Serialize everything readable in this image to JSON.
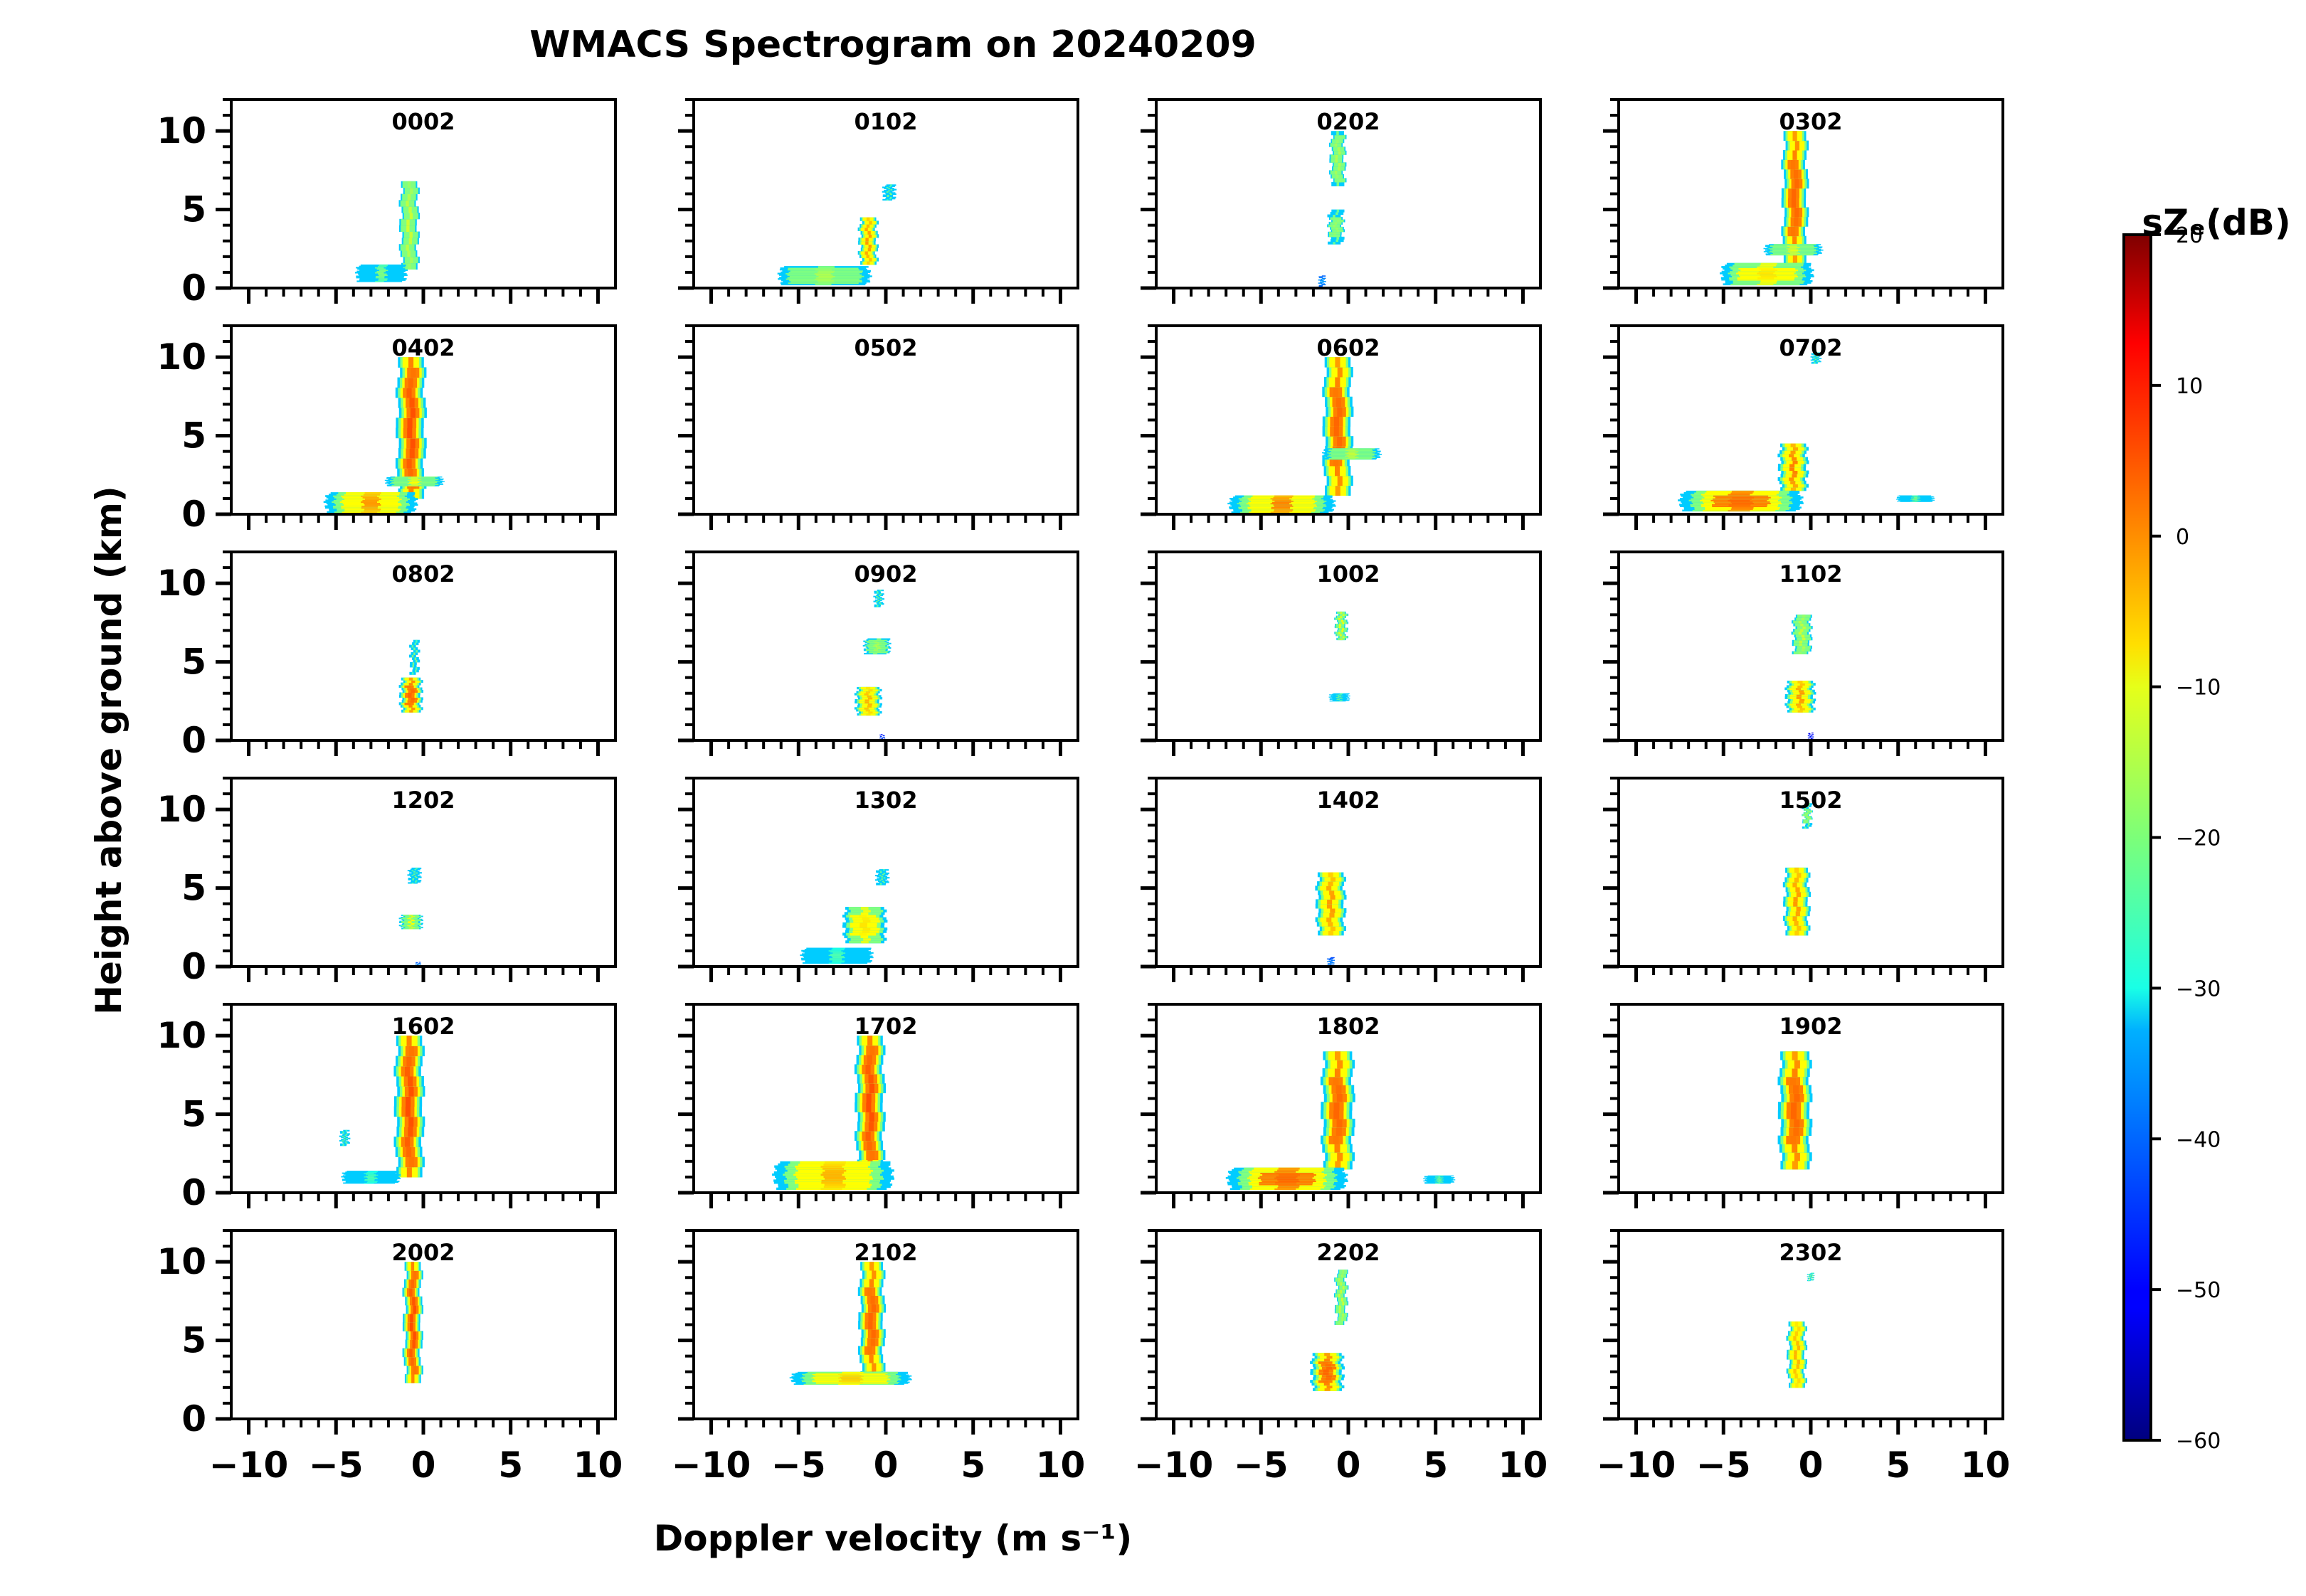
{
  "chart_data": {
    "type": "heatmap",
    "title": "WMACS Spectrogram on 20240209",
    "xlabel": "Doppler velocity (m s⁻¹)",
    "ylabel": "Height above ground (km)",
    "xlim": [
      -11,
      11
    ],
    "ylim": [
      0,
      12
    ],
    "x_ticks": [
      -10,
      -5,
      0,
      5,
      10
    ],
    "x_tick_labels": [
      "−10",
      "−5",
      "0",
      "5",
      "10"
    ],
    "y_ticks": [
      0,
      5,
      10
    ],
    "y_tick_labels": [
      "0",
      "5",
      "10"
    ],
    "colorbar": {
      "label": "sZₑ(dB)",
      "min": -60,
      "max": 20,
      "ticks": [
        -60,
        -50,
        -40,
        -30,
        -20,
        -10,
        0,
        10,
        20
      ],
      "tick_labels": [
        "−60",
        "−50",
        "−40",
        "−30",
        "−20",
        "−10",
        "0",
        "10",
        "20"
      ],
      "colormap": "jet"
    },
    "panels": [
      {
        "label": "0002",
        "features": [
          {
            "v": -0.8,
            "h0": 1.2,
            "h1": 6.8,
            "w": 0.5,
            "peak": -14
          },
          {
            "v": -2.4,
            "h0": 0.4,
            "h1": 1.5,
            "w": 1.4,
            "peak": -20
          }
        ]
      },
      {
        "label": "0102",
        "features": [
          {
            "v": -1.0,
            "h0": 1.5,
            "h1": 4.5,
            "w": 0.5,
            "peak": -2
          },
          {
            "v": 0.2,
            "h0": 5.6,
            "h1": 6.6,
            "w": 0.3,
            "peak": -20
          },
          {
            "v": -3.5,
            "h0": 0.2,
            "h1": 1.4,
            "w": 2.6,
            "peak": -16
          }
        ]
      },
      {
        "label": "0202",
        "features": [
          {
            "v": -0.6,
            "h0": 6.5,
            "h1": 10.0,
            "w": 0.4,
            "peak": -16
          },
          {
            "v": -0.7,
            "h0": 2.8,
            "h1": 5.0,
            "w": 0.4,
            "peak": -18
          },
          {
            "v": -1.5,
            "h0": 0.1,
            "h1": 0.8,
            "w": 0.6,
            "peak": -38
          }
        ]
      },
      {
        "label": "0302",
        "features": [
          {
            "v": -0.9,
            "h0": 1.5,
            "h1": 10.0,
            "w": 0.7,
            "peak": 2
          },
          {
            "v": -2.5,
            "h0": 0.2,
            "h1": 1.6,
            "w": 2.6,
            "peak": -8
          },
          {
            "v": -1.0,
            "h0": 2.1,
            "h1": 2.8,
            "w": 1.6,
            "peak": -12
          }
        ]
      },
      {
        "label": "0402",
        "features": [
          {
            "v": -0.7,
            "h0": 1.0,
            "h1": 10.0,
            "w": 0.8,
            "peak": 4
          },
          {
            "v": -3.0,
            "h0": 0.1,
            "h1": 1.4,
            "w": 2.6,
            "peak": -2
          },
          {
            "v": -0.5,
            "h0": 1.8,
            "h1": 2.4,
            "w": 1.6,
            "peak": -10
          }
        ]
      },
      {
        "label": "0502",
        "features": []
      },
      {
        "label": "0602",
        "features": [
          {
            "v": -0.6,
            "h0": 1.2,
            "h1": 10.0,
            "w": 0.8,
            "peak": 2
          },
          {
            "v": -3.8,
            "h0": 0.1,
            "h1": 1.2,
            "w": 3.0,
            "peak": 0
          },
          {
            "v": 0.2,
            "h0": 3.5,
            "h1": 4.2,
            "w": 1.6,
            "peak": -14
          }
        ]
      },
      {
        "label": "0702",
        "features": [
          {
            "v": -1.0,
            "h0": 1.5,
            "h1": 4.5,
            "w": 0.8,
            "peak": 0
          },
          {
            "v": -4.0,
            "h0": 0.2,
            "h1": 1.5,
            "w": 3.5,
            "peak": 2
          },
          {
            "v": 0.3,
            "h0": 9.6,
            "h1": 10.3,
            "w": 0.2,
            "peak": -20
          },
          {
            "v": 6.0,
            "h0": 0.8,
            "h1": 1.2,
            "w": 1.0,
            "peak": -20
          }
        ]
      },
      {
        "label": "0802",
        "features": [
          {
            "v": -0.7,
            "h0": 1.8,
            "h1": 4.0,
            "w": 0.6,
            "peak": 2
          },
          {
            "v": -0.5,
            "h0": 4.2,
            "h1": 6.4,
            "w": 0.2,
            "peak": -20
          }
        ]
      },
      {
        "label": "0902",
        "features": [
          {
            "v": -1.0,
            "h0": 1.6,
            "h1": 3.4,
            "w": 0.7,
            "peak": -4
          },
          {
            "v": -0.5,
            "h0": 5.5,
            "h1": 6.5,
            "w": 0.7,
            "peak": -16
          },
          {
            "v": -0.4,
            "h0": 8.5,
            "h1": 9.6,
            "w": 0.2,
            "peak": -20
          },
          {
            "v": -0.2,
            "h0": 0.0,
            "h1": 0.4,
            "w": 0.2,
            "peak": -45
          }
        ]
      },
      {
        "label": "1002",
        "features": [
          {
            "v": -0.4,
            "h0": 6.4,
            "h1": 8.2,
            "w": 0.3,
            "peak": -10
          },
          {
            "v": -0.5,
            "h0": 2.5,
            "h1": 3.0,
            "w": 0.5,
            "peak": -20
          }
        ]
      },
      {
        "label": "1102",
        "features": [
          {
            "v": -0.6,
            "h0": 1.8,
            "h1": 3.8,
            "w": 0.8,
            "peak": -2
          },
          {
            "v": -0.5,
            "h0": 5.5,
            "h1": 8.0,
            "w": 0.5,
            "peak": -14
          },
          {
            "v": 0.0,
            "h0": 0.0,
            "h1": 0.5,
            "w": 0.3,
            "peak": -48
          }
        ]
      },
      {
        "label": "1202",
        "features": [
          {
            "v": -0.7,
            "h0": 2.4,
            "h1": 3.3,
            "w": 0.6,
            "peak": -10
          },
          {
            "v": -0.5,
            "h0": 5.3,
            "h1": 6.3,
            "w": 0.3,
            "peak": -20
          },
          {
            "v": -0.3,
            "h0": 0.0,
            "h1": 0.3,
            "w": 0.3,
            "peak": -40
          }
        ]
      },
      {
        "label": "1302",
        "features": [
          {
            "v": -1.2,
            "h0": 1.5,
            "h1": 3.8,
            "w": 1.2,
            "peak": -8
          },
          {
            "v": -2.8,
            "h0": 0.2,
            "h1": 1.2,
            "w": 2.0,
            "peak": -24
          },
          {
            "v": -0.2,
            "h0": 5.2,
            "h1": 6.2,
            "w": 0.3,
            "peak": -20
          }
        ]
      },
      {
        "label": "1402",
        "features": [
          {
            "v": -1.0,
            "h0": 2.0,
            "h1": 6.0,
            "w": 0.8,
            "peak": -2
          },
          {
            "v": -1.0,
            "h0": 0.0,
            "h1": 0.6,
            "w": 0.6,
            "peak": -40
          }
        ]
      },
      {
        "label": "1502",
        "features": [
          {
            "v": -0.8,
            "h0": 2.0,
            "h1": 6.3,
            "w": 0.7,
            "peak": -2
          },
          {
            "v": -0.2,
            "h0": 8.8,
            "h1": 10.4,
            "w": 0.2,
            "peak": -18
          }
        ]
      },
      {
        "label": "1602",
        "features": [
          {
            "v": -0.8,
            "h0": 1.0,
            "h1": 10.0,
            "w": 0.8,
            "peak": 4
          },
          {
            "v": -3.0,
            "h0": 0.6,
            "h1": 1.4,
            "w": 1.6,
            "peak": -24
          },
          {
            "v": -4.5,
            "h0": 3.0,
            "h1": 4.0,
            "w": 0.2,
            "peak": -20
          }
        ]
      },
      {
        "label": "1702",
        "features": [
          {
            "v": -0.9,
            "h0": 1.5,
            "h1": 10.0,
            "w": 0.8,
            "peak": 4
          },
          {
            "v": -3.0,
            "h0": 0.2,
            "h1": 2.0,
            "w": 3.4,
            "peak": -4
          }
        ]
      },
      {
        "label": "1802",
        "features": [
          {
            "v": -0.6,
            "h0": 1.5,
            "h1": 9.0,
            "w": 0.9,
            "peak": 2
          },
          {
            "v": -3.5,
            "h0": 0.2,
            "h1": 1.6,
            "w": 3.4,
            "peak": 2
          },
          {
            "v": 5.2,
            "h0": 0.6,
            "h1": 1.1,
            "w": 0.8,
            "peak": -20
          }
        ]
      },
      {
        "label": "1902",
        "features": [
          {
            "v": -0.9,
            "h0": 1.5,
            "h1": 9.0,
            "w": 0.9,
            "peak": 2
          }
        ]
      },
      {
        "label": "2002",
        "features": [
          {
            "v": -0.6,
            "h0": 2.3,
            "h1": 10.0,
            "w": 0.5,
            "peak": 4
          }
        ]
      },
      {
        "label": "2102",
        "features": [
          {
            "v": -0.8,
            "h0": 2.5,
            "h1": 10.0,
            "w": 0.7,
            "peak": 2
          },
          {
            "v": -2.0,
            "h0": 2.2,
            "h1": 3.0,
            "w": 3.4,
            "peak": -6
          }
        ]
      },
      {
        "label": "2202",
        "features": [
          {
            "v": -1.2,
            "h0": 1.8,
            "h1": 4.2,
            "w": 0.9,
            "peak": 2
          },
          {
            "v": -0.4,
            "h0": 6.0,
            "h1": 9.5,
            "w": 0.3,
            "peak": -14
          }
        ]
      },
      {
        "label": "2302",
        "features": [
          {
            "v": -0.8,
            "h0": 2.0,
            "h1": 6.2,
            "w": 0.5,
            "peak": -4
          },
          {
            "v": 0.0,
            "h0": 8.8,
            "h1": 9.3,
            "w": 0.1,
            "peak": -20
          }
        ]
      }
    ]
  }
}
